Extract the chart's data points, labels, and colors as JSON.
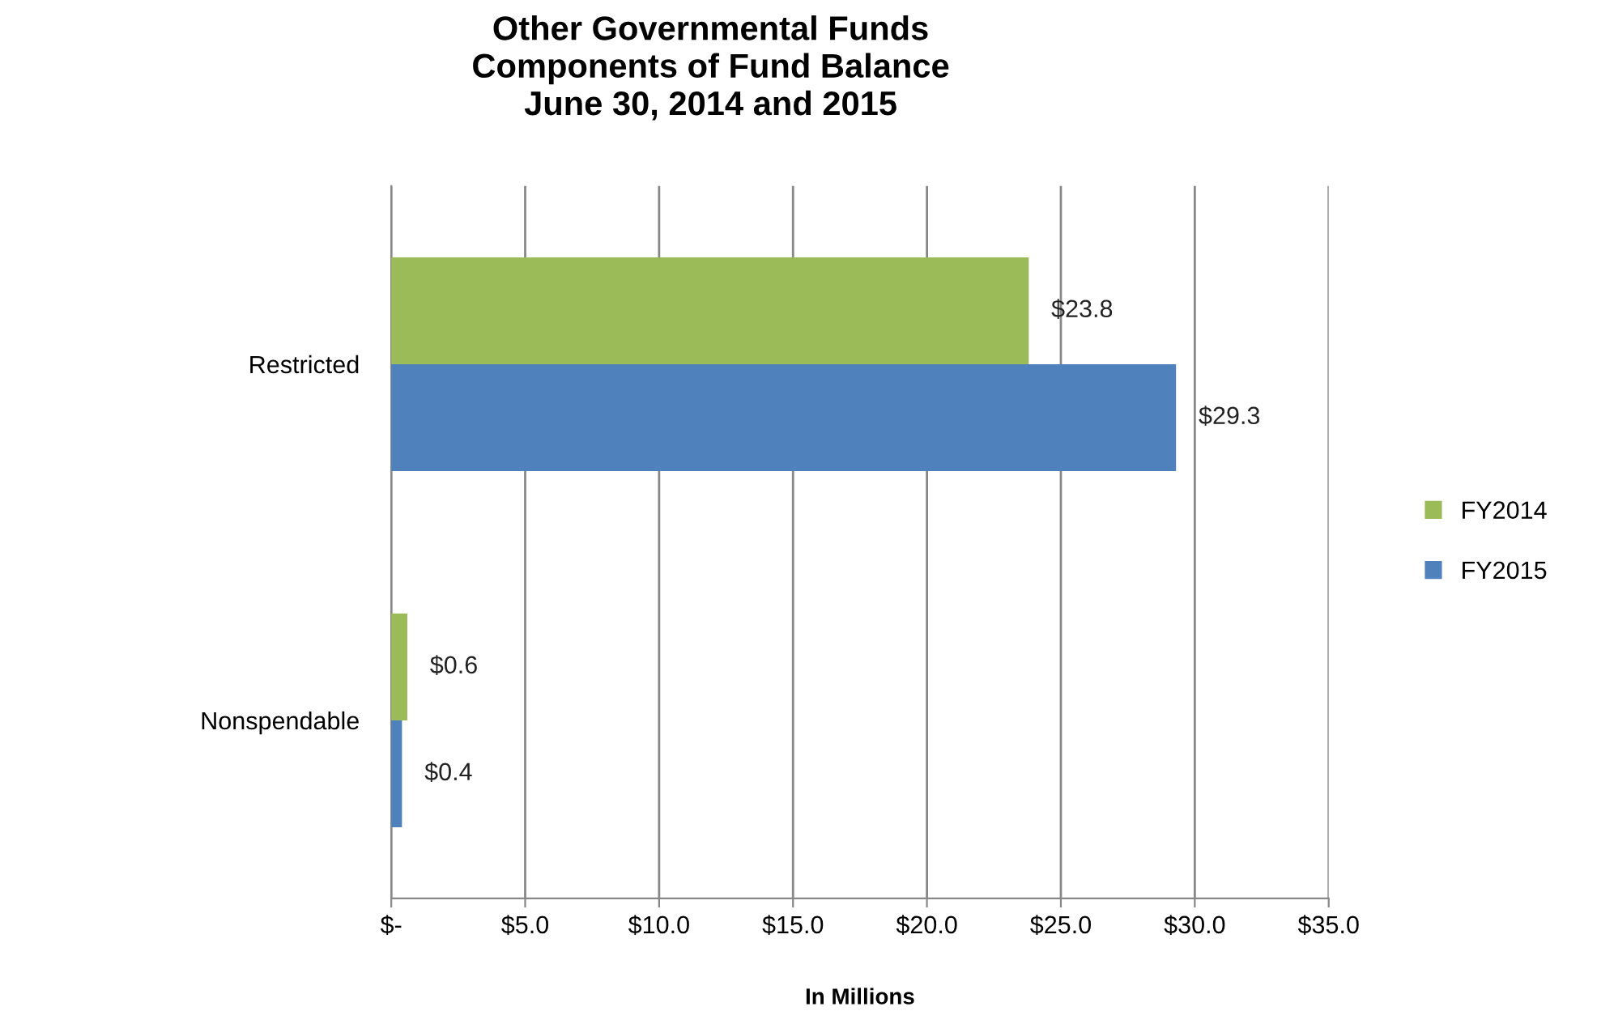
{
  "chart_data": {
    "type": "bar",
    "orientation": "horizontal",
    "title": "Other Governmental Funds\nComponents of Fund Balance\nJune 30, 2014 and 2015",
    "xlabel": "In Millions",
    "categories": [
      "Restricted",
      "Nonspendable"
    ],
    "series": [
      {
        "name": "FY2014",
        "color": "#9bbb59",
        "values": [
          23.8,
          0.6
        ],
        "value_labels": [
          "$23.8",
          "$0.6"
        ]
      },
      {
        "name": "FY2015",
        "color": "#4f81bd",
        "values": [
          29.3,
          0.4
        ],
        "value_labels": [
          "$29.3",
          "$0.4"
        ]
      }
    ],
    "xlim": [
      0,
      35
    ],
    "xticks": [
      {
        "value": 0,
        "label": "$-"
      },
      {
        "value": 5,
        "label": "$5.0"
      },
      {
        "value": 10,
        "label": "$10.0"
      },
      {
        "value": 15,
        "label": "$15.0"
      },
      {
        "value": 20,
        "label": "$20.0"
      },
      {
        "value": 25,
        "label": "$25.0"
      },
      {
        "value": 30,
        "label": "$30.0"
      },
      {
        "value": 35,
        "label": "$35.0"
      }
    ],
    "grid": "x",
    "legend": "right"
  }
}
